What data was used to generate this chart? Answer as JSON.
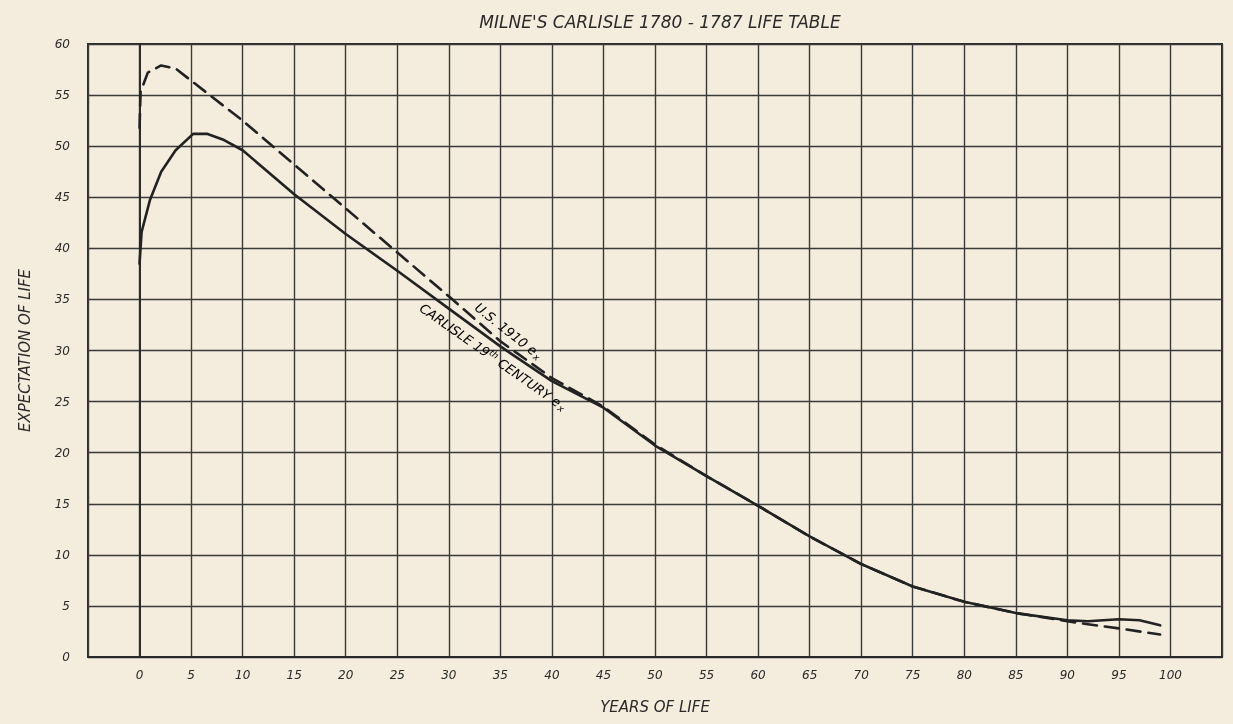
{
  "chart_data": {
    "type": "line",
    "title": "MILNE'S CARLISLE 1780 - 1787 LIFE TABLE",
    "xlabel": "YEARS OF LIFE",
    "ylabel": "EXPECTATION OF LIFE",
    "xlim": [
      -5,
      105
    ],
    "xticks": [
      0,
      5,
      10,
      15,
      20,
      25,
      30,
      35,
      40,
      45,
      50,
      55,
      60,
      65,
      70,
      75,
      80,
      85,
      90,
      95,
      100
    ],
    "ylim": [
      0,
      60
    ],
    "yticks": [
      0,
      5,
      10,
      15,
      20,
      25,
      30,
      35,
      40,
      45,
      50,
      55,
      60
    ],
    "grid": true,
    "marker": "none",
    "series": [
      {
        "name": "U.S. 1910 e$_{x}$",
        "color": "#222222",
        "line_style": "dashed",
        "x": [
          0,
          0.1,
          0.8,
          2.1,
          3.5,
          5.4,
          10,
          15,
          20,
          25,
          30,
          35,
          40,
          45,
          50,
          55,
          60,
          65,
          70,
          75,
          80,
          85,
          90,
          92,
          95,
          99
        ],
        "values": [
          51.8,
          55.3,
          57.2,
          57.9,
          57.6,
          56.1,
          52.5,
          48.2,
          43.9,
          39.6,
          35.3,
          30.9,
          27.3,
          24.5,
          20.8,
          17.7,
          14.8,
          11.8,
          9.1,
          6.9,
          5.4,
          4.3,
          3.5,
          3.2,
          2.8,
          2.2
        ]
      },
      {
        "name": "CARLISLE 19$^{th}$ CENTURY e$_{x}$",
        "color": "#222222",
        "line_style": "solid",
        "x": [
          0,
          0.2,
          1,
          2.1,
          3.5,
          5.2,
          6.6,
          8.2,
          10,
          15,
          20,
          25,
          30,
          35,
          40,
          45,
          50,
          55,
          60,
          65,
          70,
          75,
          80,
          85,
          90,
          92,
          95,
          97,
          99
        ],
        "values": [
          38.5,
          41.6,
          44.7,
          47.5,
          49.6,
          51.2,
          51.2,
          50.6,
          49.6,
          45.3,
          41.4,
          37.8,
          34.1,
          30.4,
          27.0,
          24.4,
          20.7,
          17.7,
          14.8,
          11.8,
          9.1,
          6.9,
          5.4,
          4.3,
          3.6,
          3.5,
          3.7,
          3.6,
          3.1
        ]
      }
    ]
  }
}
